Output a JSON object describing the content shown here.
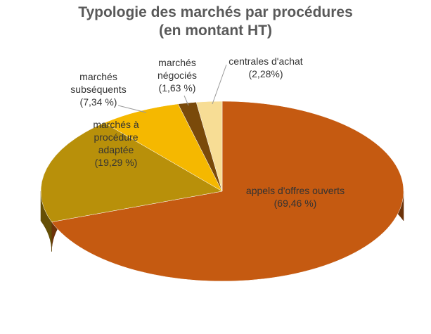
{
  "chart_data": {
    "type": "pie3d",
    "title": "Typologie des marchés par procédures",
    "subtitle": "(en montant HT)",
    "categories": [
      "appels d'offres ouverts",
      "marchés à procédure adaptée",
      "marchés subséquents",
      "marchés négociés",
      "centrales d'achat"
    ],
    "values": [
      69.46,
      19.29,
      7.34,
      1.63,
      2.28
    ],
    "value_labels": [
      "(69,46 %)",
      "(19,29 %)",
      "(7,34 %)",
      "(1,63 %)",
      "(2,28%)"
    ],
    "colors": [
      "#c55a11",
      "#b8900a",
      "#f5b800",
      "#7a4a0a",
      "#f7dd95"
    ]
  }
}
